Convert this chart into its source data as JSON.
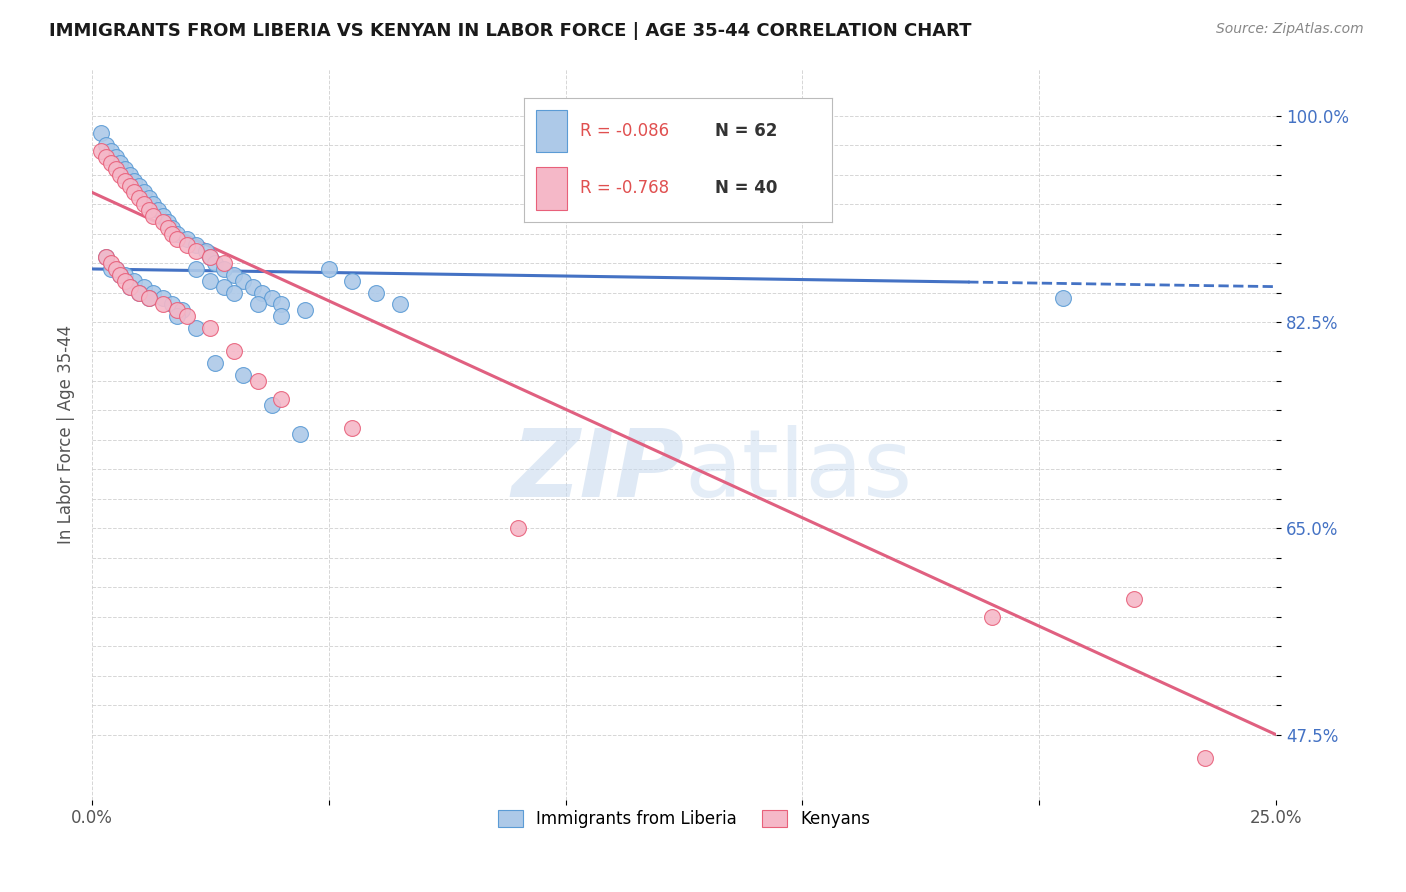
{
  "title": "IMMIGRANTS FROM LIBERIA VS KENYAN IN LABOR FORCE | AGE 35-44 CORRELATION CHART",
  "source": "Source: ZipAtlas.com",
  "ylabel": "In Labor Force | Age 35-44",
  "xlim": [
    0.0,
    0.25
  ],
  "ylim": [
    0.42,
    1.04
  ],
  "ytick_positions": [
    0.475,
    0.5,
    0.525,
    0.55,
    0.575,
    0.6,
    0.625,
    0.65,
    0.675,
    0.7,
    0.725,
    0.75,
    0.775,
    0.8,
    0.825,
    0.85,
    0.875,
    0.9,
    0.925,
    0.95,
    0.975,
    1.0
  ],
  "ytick_labels": [
    "47.5%",
    "",
    "",
    "",
    "",
    "",
    "",
    "65.0%",
    "",
    "",
    "",
    "",
    "",
    "",
    "82.5%",
    "",
    "",
    "",
    "",
    "",
    "",
    "100.0%"
  ],
  "xtick_positions": [
    0.0,
    0.05,
    0.1,
    0.15,
    0.2,
    0.25
  ],
  "xtick_labels": [
    "0.0%",
    "",
    "",
    "",
    "",
    "25.0%"
  ],
  "R_liberia": -0.086,
  "N_liberia": 62,
  "R_kenya": -0.768,
  "N_kenya": 40,
  "liberia_fill": "#adc9e8",
  "liberia_edge": "#5b9bd5",
  "kenya_fill": "#f5b8c8",
  "kenya_edge": "#e8607a",
  "liberia_line_color": "#4472c4",
  "kenya_line_color": "#e06080",
  "watermark_color": "#c5d8ee",
  "liberia_x": [
    0.002,
    0.003,
    0.004,
    0.005,
    0.006,
    0.007,
    0.008,
    0.009,
    0.01,
    0.011,
    0.012,
    0.013,
    0.014,
    0.015,
    0.016,
    0.017,
    0.018,
    0.02,
    0.022,
    0.024,
    0.025,
    0.026,
    0.028,
    0.03,
    0.032,
    0.034,
    0.036,
    0.038,
    0.04,
    0.045,
    0.05,
    0.055,
    0.06,
    0.065,
    0.003,
    0.005,
    0.007,
    0.009,
    0.011,
    0.013,
    0.015,
    0.017,
    0.019,
    0.022,
    0.025,
    0.028,
    0.03,
    0.035,
    0.04,
    0.004,
    0.006,
    0.008,
    0.01,
    0.012,
    0.018,
    0.022,
    0.026,
    0.032,
    0.038,
    0.044,
    0.13,
    0.205
  ],
  "liberia_y": [
    0.985,
    0.975,
    0.97,
    0.965,
    0.96,
    0.955,
    0.95,
    0.945,
    0.94,
    0.935,
    0.93,
    0.925,
    0.92,
    0.915,
    0.91,
    0.905,
    0.9,
    0.895,
    0.89,
    0.885,
    0.88,
    0.875,
    0.87,
    0.865,
    0.86,
    0.855,
    0.85,
    0.845,
    0.84,
    0.835,
    0.87,
    0.86,
    0.85,
    0.84,
    0.88,
    0.87,
    0.865,
    0.86,
    0.855,
    0.85,
    0.845,
    0.84,
    0.835,
    0.87,
    0.86,
    0.855,
    0.85,
    0.84,
    0.83,
    0.87,
    0.865,
    0.855,
    0.85,
    0.845,
    0.83,
    0.82,
    0.79,
    0.78,
    0.755,
    0.73,
    0.96,
    0.845
  ],
  "kenya_x": [
    0.002,
    0.003,
    0.004,
    0.005,
    0.006,
    0.007,
    0.008,
    0.009,
    0.01,
    0.011,
    0.012,
    0.013,
    0.015,
    0.016,
    0.017,
    0.018,
    0.02,
    0.022,
    0.025,
    0.028,
    0.003,
    0.004,
    0.005,
    0.006,
    0.007,
    0.008,
    0.01,
    0.012,
    0.015,
    0.018,
    0.02,
    0.025,
    0.03,
    0.035,
    0.04,
    0.055,
    0.09,
    0.19,
    0.22,
    0.235
  ],
  "kenya_y": [
    0.97,
    0.965,
    0.96,
    0.955,
    0.95,
    0.945,
    0.94,
    0.935,
    0.93,
    0.925,
    0.92,
    0.915,
    0.91,
    0.905,
    0.9,
    0.895,
    0.89,
    0.885,
    0.88,
    0.875,
    0.88,
    0.875,
    0.87,
    0.865,
    0.86,
    0.855,
    0.85,
    0.845,
    0.84,
    0.835,
    0.83,
    0.82,
    0.8,
    0.775,
    0.76,
    0.735,
    0.65,
    0.575,
    0.59,
    0.455
  ]
}
